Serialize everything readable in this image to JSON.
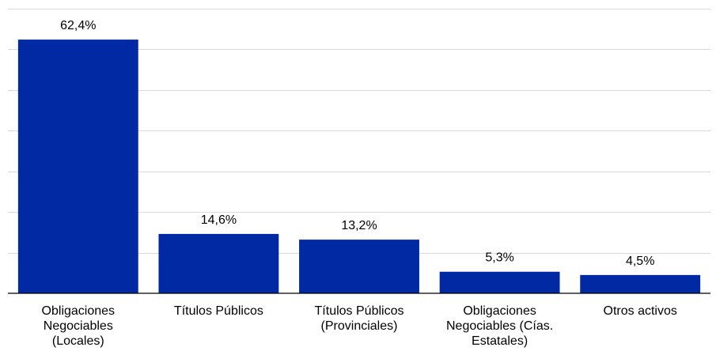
{
  "chart_data": {
    "type": "bar",
    "categories": [
      "Obligaciones Negociables (Locales)",
      "Títulos Públicos",
      "Títulos Públicos (Provinciales)",
      "Obligaciones Negociables (Cías. Estatales)",
      "Otros activos"
    ],
    "category_lines": [
      [
        "Obligaciones",
        "Negociables",
        "(Locales)"
      ],
      [
        "Títulos Públicos"
      ],
      [
        "Títulos Públicos",
        "(Provinciales)"
      ],
      [
        "Obligaciones",
        "Negociables (Cías.",
        "Estatales)"
      ],
      [
        "Otros activos"
      ]
    ],
    "values": [
      62.4,
      14.6,
      13.2,
      5.3,
      4.5
    ],
    "data_labels": [
      "62,4%",
      "14,6%",
      "13,2%",
      "5,3%",
      "4,5%"
    ],
    "title": "",
    "xlabel": "",
    "ylabel": "",
    "ylim": [
      0,
      70
    ],
    "gridlines": [
      0,
      10,
      20,
      30,
      40,
      50,
      60,
      70
    ],
    "grid": true,
    "bar_color": "#0029a3",
    "legend": "none"
  }
}
